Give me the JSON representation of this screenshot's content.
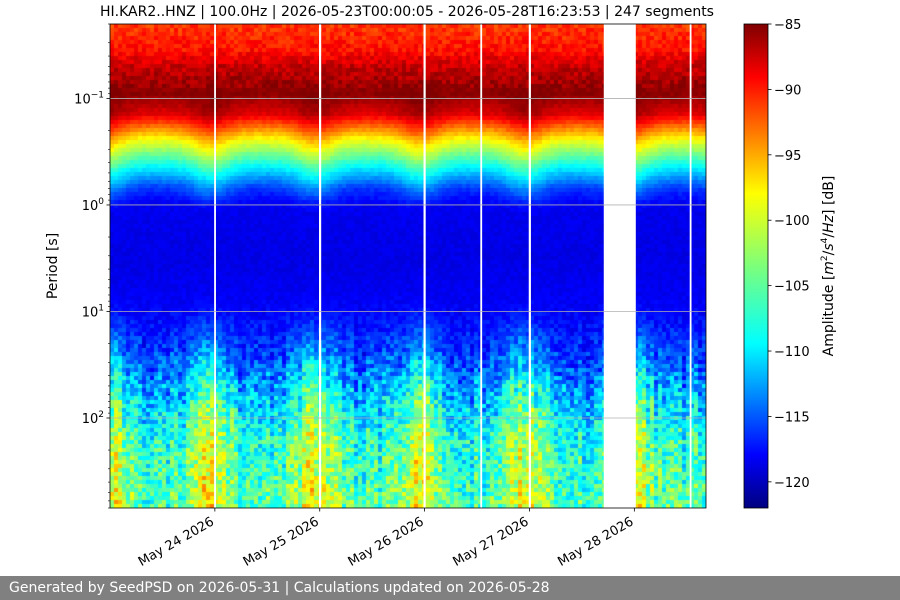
{
  "chart_data": {
    "type": "heatmap",
    "title": "HI.KAR2..HNZ | 100.0Hz | 2026-05-23T00:00:05 - 2026-05-28T16:23:53 | 247 segments",
    "start": "2026-05-23T00:00:05",
    "end": "2026-05-28T16:23:53",
    "ylabel": "Period [s]",
    "y_scale": "log",
    "y_inverted": true,
    "ylim": [
      0.02,
      700
    ],
    "yticks": [
      {
        "value": 0.1,
        "base": "10",
        "exp": "−1"
      },
      {
        "value": 1,
        "base": "10",
        "exp": "0"
      },
      {
        "value": 10,
        "base": "10",
        "exp": "1"
      },
      {
        "value": 100,
        "base": "10",
        "exp": "2"
      }
    ],
    "xticks": [
      {
        "date": "2026-05-24",
        "label": "May 24 2026"
      },
      {
        "date": "2026-05-25",
        "label": "May 25 2026"
      },
      {
        "date": "2026-05-26",
        "label": "May 26 2026"
      },
      {
        "date": "2026-05-27",
        "label": "May 27 2026"
      },
      {
        "date": "2026-05-28",
        "label": "May 28 2026"
      }
    ],
    "grid": "horizontal",
    "gaps": [
      {
        "start": "2026-05-23T23:50",
        "end": "2026-05-24T00:15"
      },
      {
        "start": "2026-05-24T23:50",
        "end": "2026-05-25T00:20"
      },
      {
        "start": "2026-05-25T23:45",
        "end": "2026-05-26T00:15"
      },
      {
        "start": "2026-05-26T12:45",
        "end": "2026-05-26T13:10"
      },
      {
        "start": "2026-05-26T23:50",
        "end": "2026-05-27T00:20"
      },
      {
        "start": "2026-05-27T17:00",
        "end": "2026-05-28T00:20"
      },
      {
        "start": "2026-05-28T12:40",
        "end": "2026-05-28T13:05"
      }
    ],
    "colorbar": {
      "label": "Amplitude [m²/s⁴/Hz] [dB]",
      "min": -122,
      "max": -85,
      "colormap": "jet",
      "ticks": [
        -85,
        -90,
        -95,
        -100,
        -105,
        -110,
        -115,
        -120
      ]
    }
  },
  "footer": "Generated by SeedPSD on 2026-05-31 | Calculations updated on 2026-05-28"
}
